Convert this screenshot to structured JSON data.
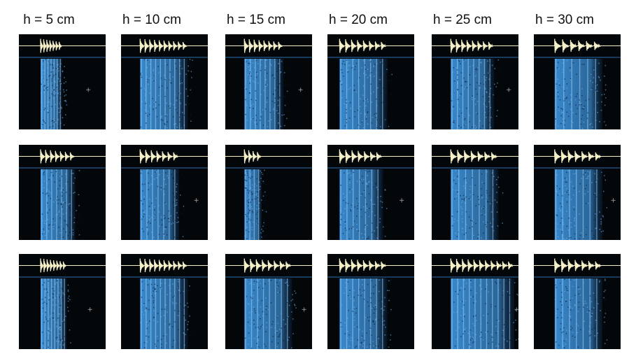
{
  "figure": {
    "column_labels": [
      "h = 5 cm",
      "h = 10 cm",
      "h = 15 cm",
      "h = 20 cm",
      "h = 25 cm",
      "h = 30 cm"
    ],
    "rows": 3,
    "columns": 6,
    "colors": {
      "background": "#ffffff",
      "panel_background": "#04070a",
      "waveform": "#f5f0c8",
      "spectrogram_blue": "#3b8fd6",
      "spectrogram_dark": "#0b2a52",
      "separator_line": "#2b6fb0"
    },
    "panels": [
      {
        "row": 0,
        "col": 0,
        "bursts": 7,
        "extent": 0.25
      },
      {
        "row": 0,
        "col": 1,
        "bursts": 10,
        "extent": 0.55
      },
      {
        "row": 0,
        "col": 2,
        "bursts": 8,
        "extent": 0.45
      },
      {
        "row": 0,
        "col": 3,
        "bursts": 8,
        "extent": 0.55
      },
      {
        "row": 0,
        "col": 4,
        "bursts": 8,
        "extent": 0.5
      },
      {
        "row": 0,
        "col": 5,
        "bursts": 6,
        "extent": 0.55
      },
      {
        "row": 1,
        "col": 0,
        "bursts": 7,
        "extent": 0.4
      },
      {
        "row": 1,
        "col": 1,
        "bursts": 7,
        "extent": 0.45
      },
      {
        "row": 1,
        "col": 2,
        "bursts": 4,
        "extent": 0.2
      },
      {
        "row": 1,
        "col": 3,
        "bursts": 7,
        "extent": 0.5
      },
      {
        "row": 1,
        "col": 4,
        "bursts": 7,
        "extent": 0.55
      },
      {
        "row": 1,
        "col": 5,
        "bursts": 7,
        "extent": 0.55
      },
      {
        "row": 2,
        "col": 0,
        "bursts": 8,
        "extent": 0.3
      },
      {
        "row": 2,
        "col": 1,
        "bursts": 10,
        "extent": 0.55
      },
      {
        "row": 2,
        "col": 2,
        "bursts": 8,
        "extent": 0.55
      },
      {
        "row": 2,
        "col": 3,
        "bursts": 8,
        "extent": 0.55
      },
      {
        "row": 2,
        "col": 4,
        "bursts": 11,
        "extent": 0.75
      },
      {
        "row": 2,
        "col": 5,
        "bursts": 7,
        "extent": 0.55
      }
    ]
  }
}
